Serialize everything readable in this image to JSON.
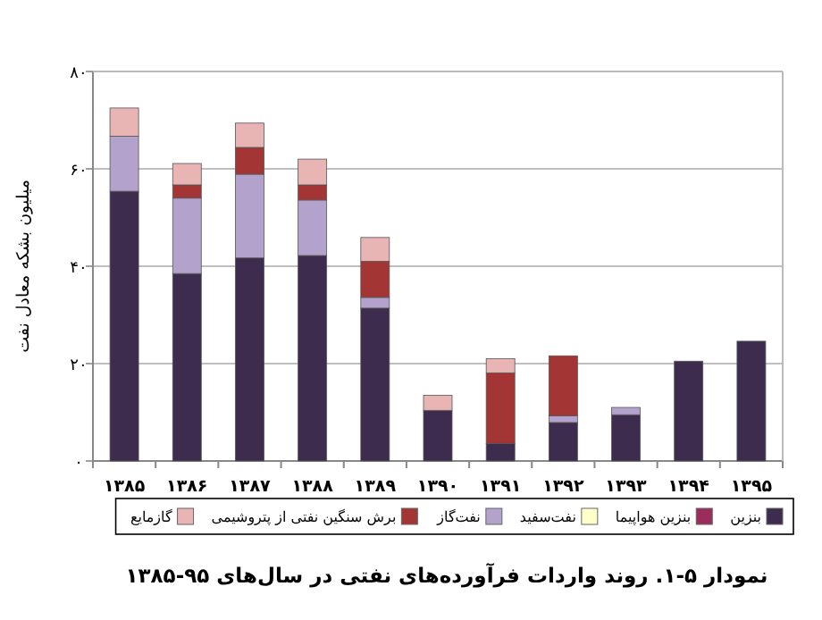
{
  "chart_data": {
    "type": "bar",
    "stacked": true,
    "title": "نمودار ۵-۱. روند واردات فرآورده‌های نفتی در سال‌های ۹۵-۱۳۸۵",
    "ylabel": "میلیون بشکه معادل نفت",
    "categories": [
      "۱۳۸۵",
      "۱۳۸۶",
      "۱۳۸۷",
      "۱۳۸۸",
      "۱۳۸۹",
      "۱۳۹۰",
      "۱۳۹۱",
      "۱۳۹۲",
      "۱۳۹۳",
      "۱۳۹۴",
      "۱۳۹۵"
    ],
    "series": [
      {
        "name": "بنزین",
        "color": "#3d2c4e",
        "values": [
          55.4,
          38.5,
          41.7,
          42.2,
          31.4,
          10.4,
          3.6,
          7.9,
          9.5,
          20.5,
          24.6
        ]
      },
      {
        "name": "بنزین هواپیما",
        "color": "#9b2d5a",
        "values": [
          0,
          0,
          0,
          0,
          0,
          0,
          0,
          0,
          0,
          0,
          0
        ]
      },
      {
        "name": "نفت‌سفید",
        "color": "#ffffcc",
        "values": [
          0,
          0,
          0,
          0,
          0,
          0,
          0,
          0,
          0,
          0,
          0
        ]
      },
      {
        "name": "نفت‌گاز",
        "color": "#b3a2cc",
        "values": [
          11.3,
          15.5,
          17.2,
          11.4,
          2.2,
          0,
          0,
          1.4,
          1.5,
          0,
          0
        ]
      },
      {
        "name": "برش سنگین نفتی از پتروشیمی",
        "color": "#a33535",
        "values": [
          0,
          2.7,
          5.5,
          3.1,
          7.4,
          0,
          14.5,
          12.3,
          0,
          0,
          0
        ]
      },
      {
        "name": "گازمایع",
        "color": "#e8b4b4",
        "values": [
          5.8,
          4.4,
          5.0,
          5.3,
          4.9,
          3.1,
          2.9,
          null,
          0,
          0,
          0
        ]
      }
    ],
    "ylim": [
      0,
      80
    ],
    "yticks": [
      {
        "value": 0,
        "label": "۰"
      },
      {
        "value": 20,
        "label": "۲۰"
      },
      {
        "value": 40,
        "label": "۴۰"
      },
      {
        "value": 60,
        "label": "۶۰"
      },
      {
        "value": 80,
        "label": "۸۰"
      }
    ],
    "grid": "y",
    "legend": "bottom"
  }
}
